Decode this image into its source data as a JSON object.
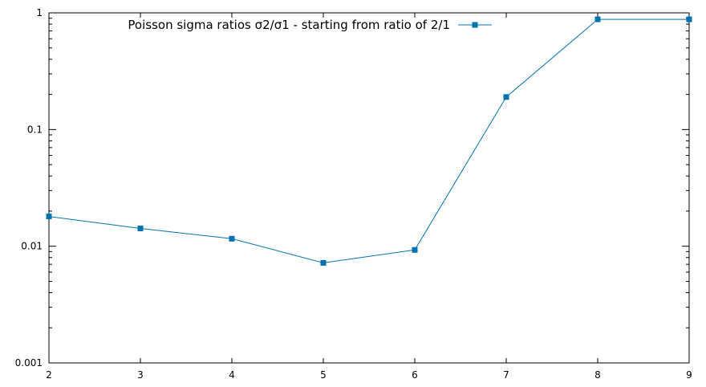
{
  "chart_data": {
    "type": "line",
    "xlabel": "",
    "ylabel": "",
    "yscale": "log",
    "xlim": [
      2,
      9
    ],
    "ylim": [
      0.001,
      1
    ],
    "x_ticks": [
      "2",
      "3",
      "4",
      "5",
      "6",
      "7",
      "8",
      "9"
    ],
    "y_ticks": [
      "0.001",
      "0.01",
      "0.1",
      "1"
    ],
    "grid": false,
    "legend_position": "top-right",
    "series": [
      {
        "name": "Poisson sigma ratios σ2/σ1 - starting from ratio of 2/1",
        "color": "#0072b2",
        "marker": "square",
        "x": [
          2,
          3,
          4,
          5,
          6,
          7,
          8,
          9
        ],
        "y": [
          0.018,
          0.0142,
          0.0116,
          0.0072,
          0.0093,
          0.19,
          0.88,
          0.88
        ]
      }
    ]
  }
}
